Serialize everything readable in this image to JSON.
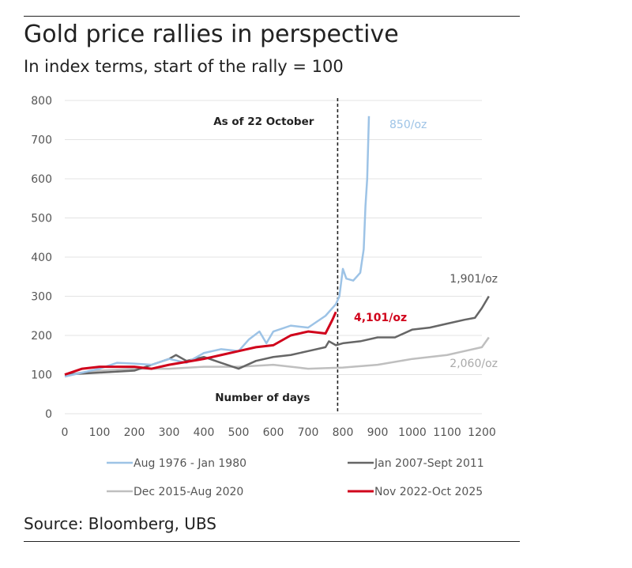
{
  "header": {
    "title": "Gold price rallies in perspective",
    "subtitle": "In index terms, start of the rally = 100"
  },
  "footer": {
    "source": "Source: Bloomberg, UBS"
  },
  "chart_data": {
    "type": "line",
    "title": "Gold price rallies in perspective",
    "subtitle": "In index terms, start of the rally = 100",
    "xlabel": "Number of days",
    "ylabel": "",
    "xlim": [
      0,
      1250
    ],
    "ylim": [
      0,
      800
    ],
    "xticks": [
      0,
      100,
      200,
      300,
      400,
      500,
      600,
      700,
      800,
      900,
      1000,
      1100,
      1200
    ],
    "yticks": [
      0,
      100,
      200,
      300,
      400,
      500,
      600,
      700,
      800
    ],
    "grid": true,
    "legend_position": "bottom",
    "annotations": {
      "vline_x": 785,
      "vline_label": "As of 22 October",
      "xlabel_text": "Number of days"
    },
    "series": [
      {
        "name": "Aug 1976 - Jan 1980",
        "color": "#9dc3e6",
        "end_label": "850/oz",
        "width": 2.5,
        "points": [
          [
            0,
            95
          ],
          [
            50,
            105
          ],
          [
            100,
            115
          ],
          [
            150,
            130
          ],
          [
            200,
            128
          ],
          [
            250,
            125
          ],
          [
            300,
            140
          ],
          [
            350,
            130
          ],
          [
            400,
            155
          ],
          [
            450,
            165
          ],
          [
            500,
            160
          ],
          [
            530,
            190
          ],
          [
            560,
            210
          ],
          [
            580,
            180
          ],
          [
            600,
            210
          ],
          [
            650,
            225
          ],
          [
            700,
            220
          ],
          [
            750,
            250
          ],
          [
            780,
            280
          ],
          [
            790,
            300
          ],
          [
            800,
            370
          ],
          [
            810,
            345
          ],
          [
            830,
            340
          ],
          [
            850,
            360
          ],
          [
            860,
            420
          ],
          [
            865,
            530
          ],
          [
            870,
            600
          ],
          [
            875,
            760
          ]
        ]
      },
      {
        "name": "Jan 2007-Sept  2011",
        "color": "#666666",
        "end_label": "1,901/oz",
        "width": 2.5,
        "points": [
          [
            0,
            100
          ],
          [
            100,
            105
          ],
          [
            200,
            110
          ],
          [
            250,
            125
          ],
          [
            300,
            140
          ],
          [
            320,
            150
          ],
          [
            350,
            135
          ],
          [
            400,
            145
          ],
          [
            450,
            130
          ],
          [
            500,
            115
          ],
          [
            550,
            135
          ],
          [
            600,
            145
          ],
          [
            650,
            150
          ],
          [
            700,
            160
          ],
          [
            750,
            170
          ],
          [
            760,
            185
          ],
          [
            780,
            175
          ],
          [
            800,
            180
          ],
          [
            850,
            185
          ],
          [
            900,
            195
          ],
          [
            950,
            195
          ],
          [
            1000,
            215
          ],
          [
            1050,
            220
          ],
          [
            1100,
            230
          ],
          [
            1150,
            240
          ],
          [
            1180,
            245
          ],
          [
            1200,
            270
          ],
          [
            1220,
            300
          ]
        ]
      },
      {
        "name": "Dec 2015-Aug 2020",
        "color": "#bfbfbf",
        "end_label": "2,060/oz",
        "width": 2.5,
        "points": [
          [
            0,
            100
          ],
          [
            100,
            110
          ],
          [
            200,
            115
          ],
          [
            300,
            115
          ],
          [
            400,
            120
          ],
          [
            500,
            120
          ],
          [
            600,
            125
          ],
          [
            700,
            115
          ],
          [
            800,
            118
          ],
          [
            900,
            125
          ],
          [
            1000,
            140
          ],
          [
            1100,
            150
          ],
          [
            1150,
            160
          ],
          [
            1200,
            170
          ],
          [
            1220,
            195
          ]
        ]
      },
      {
        "name": "Nov 2022-Oct 2025",
        "color": "#d0021b",
        "end_label": "4,101/oz",
        "width": 3,
        "points": [
          [
            0,
            100
          ],
          [
            50,
            115
          ],
          [
            100,
            120
          ],
          [
            200,
            120
          ],
          [
            250,
            115
          ],
          [
            300,
            125
          ],
          [
            400,
            140
          ],
          [
            450,
            150
          ],
          [
            500,
            160
          ],
          [
            550,
            170
          ],
          [
            600,
            175
          ],
          [
            650,
            200
          ],
          [
            700,
            210
          ],
          [
            750,
            205
          ],
          [
            770,
            240
          ],
          [
            780,
            260
          ]
        ]
      }
    ]
  }
}
